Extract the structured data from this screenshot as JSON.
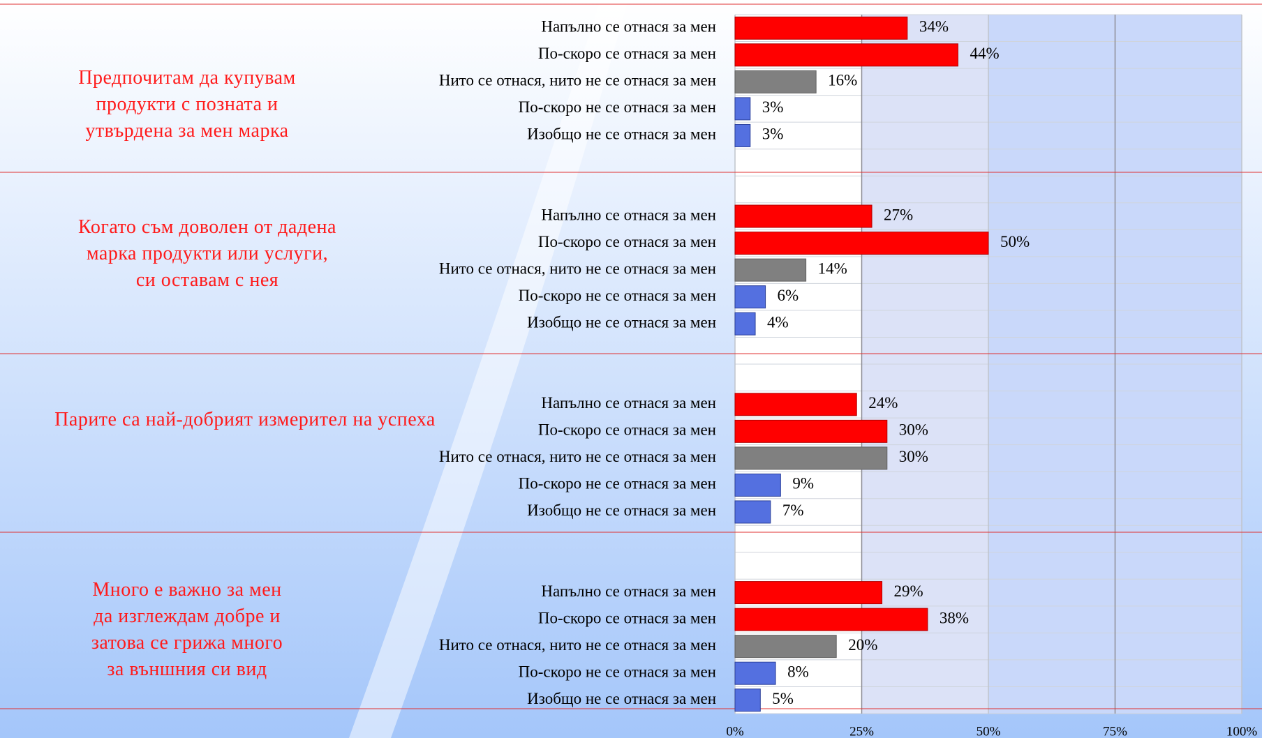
{
  "chart_data": {
    "type": "bar",
    "xlim": [
      0,
      100
    ],
    "xticks": [
      {
        "value": 0,
        "label": "0%"
      },
      {
        "value": 25,
        "label": "25%"
      },
      {
        "value": 50,
        "label": "50%"
      },
      {
        "value": 75,
        "label": "75%"
      },
      {
        "value": 100,
        "label": "100%"
      }
    ],
    "grid": true,
    "colors": [
      "#ff0000",
      "#ff0000",
      "#808080",
      "#5470e0",
      "#5470e0"
    ],
    "groups": [
      {
        "title": "Предпочитам да купувам\nпродукти с позната и\nутвърдена за мен марка",
        "categories": [
          "Напълно се отнася за мен",
          "По-скоро се отнася за мен",
          "Нито се отнася, нито не се отнася за мен",
          "По-скоро не се отнася за мен",
          "Изобщо не се отнася за мен"
        ],
        "values": [
          34,
          44,
          16,
          3,
          3
        ],
        "value_labels": [
          "34%",
          "44%",
          "16%",
          "3%",
          "3%"
        ]
      },
      {
        "title": "Когато съм доволен от дадена\nмарка продукти или услуги,\nси оставам с нея",
        "categories": [
          "Напълно се отнася за мен",
          "По-скоро се отнася за мен",
          "Нито се отнася, нито не се отнася за мен",
          "По-скоро не се отнася за мен",
          "Изобщо не се отнася за мен"
        ],
        "values": [
          27,
          50,
          14,
          6,
          4
        ],
        "value_labels": [
          "27%",
          "50%",
          "14%",
          "6%",
          "4%"
        ]
      },
      {
        "title": "Парите са най-добрият измерител на успеха",
        "categories": [
          "Напълно се отнася за мен",
          "По-скоро се отнася за мен",
          "Нито се отнася, нито не се отнася за мен",
          "По-скоро не се отнася за мен",
          "Изобщо не се отнася за мен"
        ],
        "values": [
          24,
          30,
          30,
          9,
          7
        ],
        "value_labels": [
          "24%",
          "30%",
          "30%",
          "9%",
          "7%"
        ]
      },
      {
        "title": "Много е важно за мен\nда изглеждам добре и\nзатова се грижа много\nза външния си вид",
        "categories": [
          "Напълно се отнася за мен",
          "По-скоро се отнася за мен",
          "Нито се отнася, нито не се отнася за мен",
          "По-скоро не се отнася за мен",
          "Изобщо не се отнася за мен"
        ],
        "values": [
          29,
          38,
          20,
          8,
          5
        ],
        "value_labels": [
          "29%",
          "38%",
          "20%",
          "8%",
          "5%"
        ]
      }
    ]
  }
}
